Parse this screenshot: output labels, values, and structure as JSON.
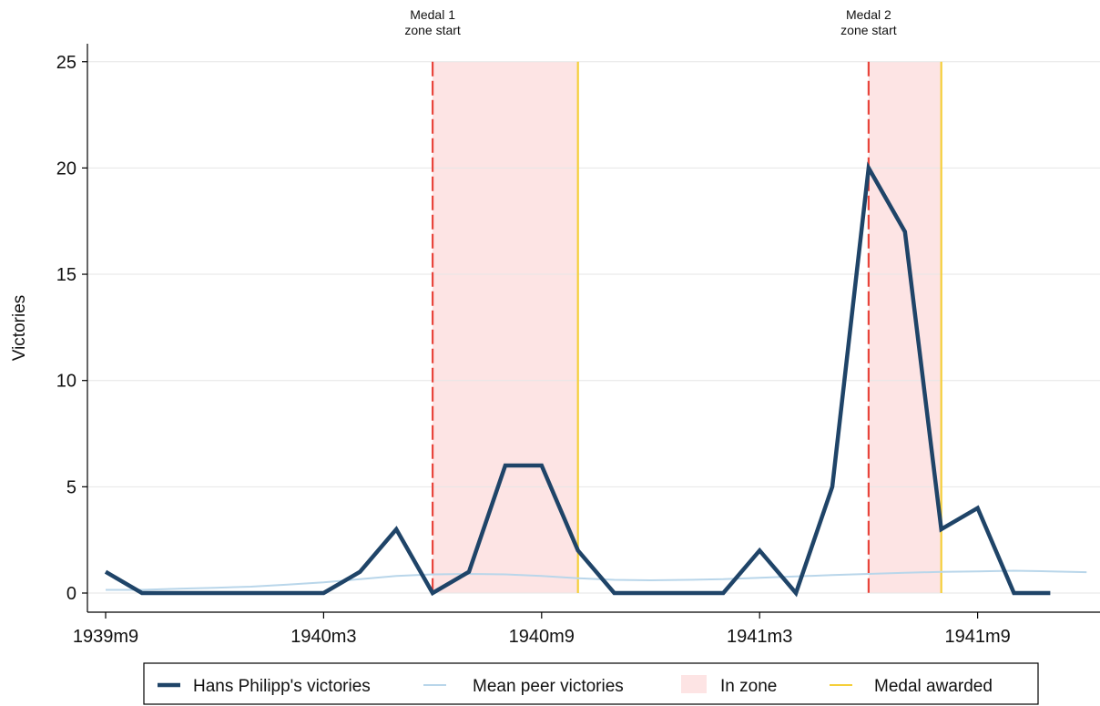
{
  "chart_data": {
    "type": "line",
    "ylabel": "Victories",
    "xlabel": "",
    "ylim": [
      0,
      25
    ],
    "y_ticks": [
      0,
      5,
      10,
      15,
      20,
      25
    ],
    "grid": true,
    "x": [
      "1939m9",
      "1939m10",
      "1939m11",
      "1939m12",
      "1940m1",
      "1940m2",
      "1940m3",
      "1940m4",
      "1940m5",
      "1940m6",
      "1940m7",
      "1940m8",
      "1940m9",
      "1940m10",
      "1940m11",
      "1940m12",
      "1941m1",
      "1941m2",
      "1941m3",
      "1941m4",
      "1941m5",
      "1941m6",
      "1941m7",
      "1941m8",
      "1941m9",
      "1941m10",
      "1941m11",
      "1941m12"
    ],
    "x_ticks": [
      "1939m9",
      "1940m3",
      "1940m9",
      "1941m3",
      "1941m9"
    ],
    "series": [
      {
        "name": "Hans Philipp's victories",
        "color": "#1f4468",
        "values": [
          1,
          0,
          0,
          0,
          0,
          0,
          0,
          1,
          3,
          0,
          1,
          6,
          6,
          2,
          0,
          0,
          0,
          0,
          2,
          0,
          5,
          20,
          17,
          3,
          4,
          0,
          0,
          null
        ]
      },
      {
        "name": "Mean peer victories",
        "color": "#b9d6ea",
        "values": [
          0.15,
          0.15,
          0.2,
          0.25,
          0.3,
          0.4,
          0.5,
          0.65,
          0.8,
          0.88,
          0.9,
          0.88,
          0.8,
          0.7,
          0.62,
          0.6,
          0.62,
          0.65,
          0.72,
          0.78,
          0.85,
          0.9,
          0.95,
          1.0,
          1.02,
          1.05,
          1.02,
          0.98
        ]
      }
    ],
    "zones": [
      {
        "start": "1940m6",
        "end": "1940m10",
        "start_label": [
          "Medal 1",
          "zone start"
        ],
        "color": "#fde4e4"
      },
      {
        "start": "1941m6",
        "end": "1941m8",
        "start_label": [
          "Medal 2",
          "zone start"
        ],
        "color": "#fde4e4"
      }
    ],
    "zone_start_line_color": "#e8453c",
    "medal_line_color": "#f5cf3a",
    "legend": {
      "position": "bottom",
      "items": [
        {
          "label": "Hans Philipp's victories",
          "kind": "thick-line",
          "color": "#1f4468"
        },
        {
          "label": "Mean peer victories",
          "kind": "thin-line",
          "color": "#b9d6ea"
        },
        {
          "label": "In zone",
          "kind": "patch",
          "color": "#fde4e4"
        },
        {
          "label": "Medal awarded",
          "kind": "thin-line",
          "color": "#f5cf3a"
        }
      ]
    }
  }
}
